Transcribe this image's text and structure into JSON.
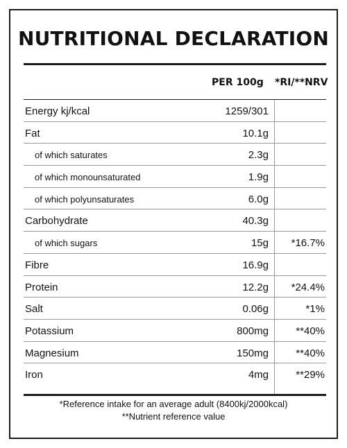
{
  "title": "NUTRITIONAL DECLARATION",
  "columns": {
    "per": "PER 100g",
    "ri": "*RI/**NRV"
  },
  "rows": [
    {
      "name": "Energy kj/kcal",
      "value": "1259/301",
      "ri": "",
      "sub": false
    },
    {
      "name": "Fat",
      "value": "10.1g",
      "ri": "",
      "sub": false
    },
    {
      "name": "of which saturates",
      "value": "2.3g",
      "ri": "",
      "sub": true
    },
    {
      "name": "of which monounsaturated",
      "value": "1.9g",
      "ri": "",
      "sub": true
    },
    {
      "name": "of which polyunsaturates",
      "value": "6.0g",
      "ri": "",
      "sub": true
    },
    {
      "name": "Carbohydrate",
      "value": "40.3g",
      "ri": "",
      "sub": false
    },
    {
      "name": "of which sugars",
      "value": "15g",
      "ri": "*16.7%",
      "sub": true
    },
    {
      "name": "Fibre",
      "value": "16.9g",
      "ri": "",
      "sub": false
    },
    {
      "name": "Protein",
      "value": "12.2g",
      "ri": "*24.4%",
      "sub": false
    },
    {
      "name": "Salt",
      "value": "0.06g",
      "ri": "*1%",
      "sub": false
    },
    {
      "name": "Potassium",
      "value": "800mg",
      "ri": "**40%",
      "sub": false
    },
    {
      "name": "Magnesium",
      "value": "150mg",
      "ri": "**40%",
      "sub": false
    },
    {
      "name": "Iron",
      "value": "4mg",
      "ri": "**29%",
      "sub": false
    }
  ],
  "footnotes": {
    "ri": "*Reference intake for an average adult (8400kj/2000kcal)",
    "nrv": "**Nutrient reference value"
  }
}
